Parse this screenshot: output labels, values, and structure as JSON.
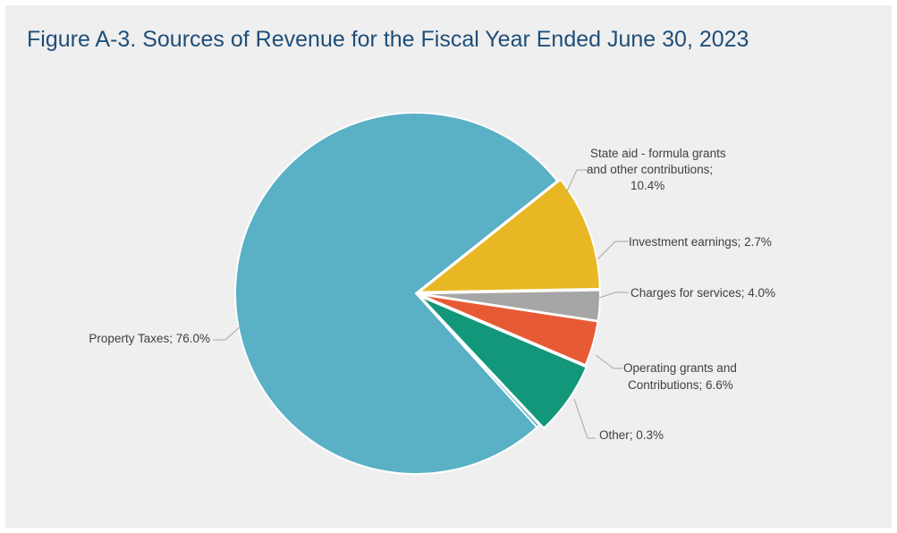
{
  "title": "Figure A-3. Sources of Revenue for the Fiscal Year Ended June 30, 2023",
  "chart_data": {
    "type": "pie",
    "title": "Figure A-3. Sources of Revenue for the Fiscal Year Ended June 30, 2023",
    "start_angle_deg": -38.5,
    "direction": "clockwise",
    "legend": "none",
    "slices": [
      {
        "label": "State aid - formula grants and other contributions",
        "value": 10.4,
        "color": "#e8b824",
        "label_lines": [
          "State aid - formula grants",
          "and other contributions;",
          "10.4%"
        ]
      },
      {
        "label": "Investment earnings",
        "value": 2.7,
        "color": "#a6a6a6",
        "label_lines": [
          "Investment earnings; 2.7%"
        ]
      },
      {
        "label": "Charges for services",
        "value": 4.0,
        "color": "#e85a35",
        "label_lines": [
          "Charges for services; 4.0%"
        ]
      },
      {
        "label": "Operating grants and Contributions",
        "value": 6.6,
        "color": "#12977a",
        "label_lines": [
          "Operating grants and",
          "Contributions; 6.6%"
        ]
      },
      {
        "label": "Other",
        "value": 0.3,
        "color": "#5ab0c5",
        "label_lines": [
          "Other; 0.3%"
        ]
      },
      {
        "label": "Property Taxes",
        "value": 76.0,
        "color": "#5ab0c5",
        "label_lines": [
          "Property Taxes; 76.0%"
        ]
      }
    ]
  }
}
